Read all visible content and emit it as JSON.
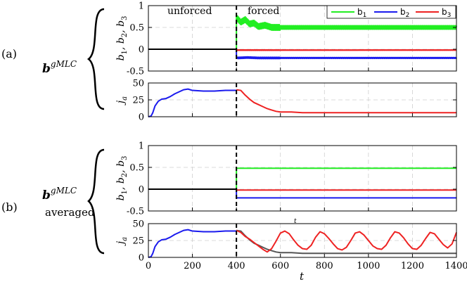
{
  "figure": {
    "row_a_tag": "(a)",
    "row_b_tag": "(b)",
    "row_a_label_base": "b",
    "row_a_label_sup": "gMLC",
    "row_b_label_base": "b",
    "row_b_label_sup": "gMLC",
    "row_b_label_sub": "averaged",
    "unforced_label": "unforced",
    "forced_label": "forced",
    "x_axis_label": "t",
    "stray_mark": "t"
  },
  "chart_data": [
    {
      "id": "panel-a-actuation",
      "type": "line",
      "title": "",
      "xlabel": "",
      "ylabel": "b1, b2, b3",
      "xlim": [
        0,
        1400
      ],
      "ylim": [
        -0.5,
        1
      ],
      "yticks": [
        -0.5,
        0,
        0.5,
        1
      ],
      "yticklabels": [
        "-0.5",
        "0",
        "0.5",
        "1"
      ],
      "grid": true,
      "legend": "top-right",
      "switch_time": 400,
      "series": [
        {
          "name": "b1",
          "color": "#22ee22",
          "x": [
            400,
            405,
            420,
            440,
            460,
            480,
            500,
            530,
            560,
            600,
            700,
            800,
            900,
            1000,
            1100,
            1200,
            1300,
            1400
          ],
          "values": [
            0.72,
            0.7,
            0.62,
            0.68,
            0.58,
            0.6,
            0.52,
            0.55,
            0.5,
            0.5,
            0.5,
            0.5,
            0.5,
            0.5,
            0.5,
            0.5,
            0.5,
            0.5
          ],
          "oscillation": 0.04
        },
        {
          "name": "b2",
          "color": "#1a1aee",
          "x": [
            400,
            405,
            450,
            500,
            600,
            800,
            1000,
            1200,
            1400
          ],
          "values": [
            -0.18,
            -0.2,
            -0.19,
            -0.2,
            -0.2,
            -0.2,
            -0.2,
            -0.2,
            -0.2
          ],
          "oscillation": 0.01
        },
        {
          "name": "b3",
          "color": "#ee2222",
          "x": [
            400,
            405,
            450,
            500,
            600,
            800,
            1000,
            1200,
            1400
          ],
          "values": [
            -0.02,
            -0.02,
            -0.02,
            -0.02,
            -0.02,
            -0.02,
            -0.02,
            -0.02,
            -0.02
          ],
          "oscillation": 0.003
        }
      ],
      "unforced": {
        "color": "#000000",
        "x": [
          0,
          400
        ],
        "values": [
          0,
          0
        ]
      }
    },
    {
      "id": "panel-a-cost",
      "type": "line",
      "title": "",
      "xlabel": "",
      "ylabel": "ja",
      "xlim": [
        0,
        1400
      ],
      "ylim": [
        0,
        50
      ],
      "yticks": [
        0,
        25,
        50
      ],
      "yticklabels": [
        "0",
        "25",
        "50"
      ],
      "grid": true,
      "switch_time": 400,
      "series": [
        {
          "name": "",
          "color": "#1a1aee",
          "x": [
            0,
            12,
            20,
            30,
            45,
            60,
            80,
            100,
            120,
            140,
            160,
            180,
            200,
            250,
            300,
            350,
            400
          ],
          "values": [
            0,
            1,
            6,
            16,
            23,
            26,
            27,
            30,
            34,
            37,
            40,
            41,
            39,
            38,
            38,
            39,
            39
          ]
        },
        {
          "name": "",
          "color": "#ee2222",
          "x": [
            400,
            420,
            440,
            460,
            480,
            500,
            520,
            540,
            560,
            580,
            600,
            650,
            700,
            800,
            900,
            1000,
            1100,
            1200,
            1300,
            1400
          ],
          "values": [
            40,
            39,
            32,
            26,
            21,
            18,
            15,
            12,
            10,
            8,
            7,
            7,
            6,
            6,
            6,
            6,
            6,
            6,
            6,
            6
          ]
        }
      ]
    },
    {
      "id": "panel-b-actuation",
      "type": "line",
      "title": "",
      "xlabel": "",
      "ylabel": "b1, b2, b3",
      "xlim": [
        0,
        1400
      ],
      "ylim": [
        -0.5,
        1
      ],
      "yticks": [
        -0.5,
        0,
        0.5,
        1
      ],
      "yticklabels": [
        "-0.5",
        "0",
        "0.5",
        "1"
      ],
      "grid": true,
      "switch_time": 400,
      "series": [
        {
          "name": "b1",
          "color": "#22ee22",
          "x": [
            400,
            1400
          ],
          "values": [
            0.48,
            0.48
          ]
        },
        {
          "name": "b2",
          "color": "#1a1aee",
          "x": [
            400,
            1400
          ],
          "values": [
            -0.2,
            -0.2
          ]
        },
        {
          "name": "b3",
          "color": "#ee2222",
          "x": [
            400,
            1400
          ],
          "values": [
            -0.02,
            -0.02
          ]
        }
      ],
      "unforced": {
        "color": "#000000",
        "x": [
          0,
          400
        ],
        "values": [
          0,
          0
        ]
      }
    },
    {
      "id": "panel-b-cost",
      "type": "line",
      "title": "",
      "xlabel": "t",
      "ylabel": "ja",
      "xlim": [
        0,
        1400
      ],
      "ylim": [
        0,
        50
      ],
      "xticks": [
        0,
        200,
        400,
        600,
        800,
        1000,
        1200,
        1400
      ],
      "xticklabels": [
        "0",
        "200",
        "400",
        "600",
        "800",
        "1000",
        "1200",
        "1400"
      ],
      "yticks": [
        0,
        25,
        50
      ],
      "yticklabels": [
        "0",
        "25",
        "50"
      ],
      "grid": true,
      "switch_time": 400,
      "series": [
        {
          "name": "",
          "color": "#555555",
          "x": [
            400,
            420,
            440,
            460,
            480,
            500,
            520,
            540,
            560,
            580,
            600,
            650,
            700,
            800,
            900,
            1000,
            1100,
            1200,
            1300,
            1400
          ],
          "values": [
            40,
            39,
            32,
            26,
            21,
            18,
            15,
            12,
            10,
            8,
            7,
            7,
            6,
            6,
            6,
            6,
            6,
            6,
            6,
            6
          ]
        },
        {
          "name": "",
          "color": "#1a1aee",
          "x": [
            0,
            12,
            20,
            30,
            45,
            60,
            80,
            100,
            120,
            140,
            160,
            180,
            200,
            250,
            300,
            350,
            400
          ],
          "values": [
            0,
            1,
            6,
            16,
            23,
            26,
            27,
            30,
            34,
            37,
            40,
            41,
            39,
            38,
            38,
            39,
            39
          ]
        },
        {
          "name": "",
          "color": "#ee2222",
          "x": [
            400,
            420,
            440,
            460,
            480,
            500,
            520,
            540,
            560,
            580,
            600,
            620,
            640,
            660,
            680,
            700,
            720,
            740,
            760,
            780,
            800,
            820,
            840,
            860,
            880,
            900,
            920,
            940,
            960,
            980,
            1000,
            1020,
            1040,
            1060,
            1080,
            1100,
            1120,
            1140,
            1160,
            1180,
            1200,
            1220,
            1240,
            1260,
            1280,
            1300,
            1320,
            1340,
            1360,
            1380,
            1400
          ],
          "values": [
            40,
            37,
            31,
            27,
            22,
            17,
            12,
            8,
            13,
            24,
            36,
            39,
            35,
            26,
            18,
            13,
            12,
            18,
            30,
            38,
            35,
            28,
            20,
            13,
            11,
            15,
            25,
            36,
            38,
            33,
            25,
            17,
            13,
            12,
            18,
            29,
            38,
            36,
            29,
            20,
            13,
            12,
            18,
            28,
            37,
            35,
            27,
            19,
            14,
            20,
            37
          ]
        }
      ]
    }
  ]
}
